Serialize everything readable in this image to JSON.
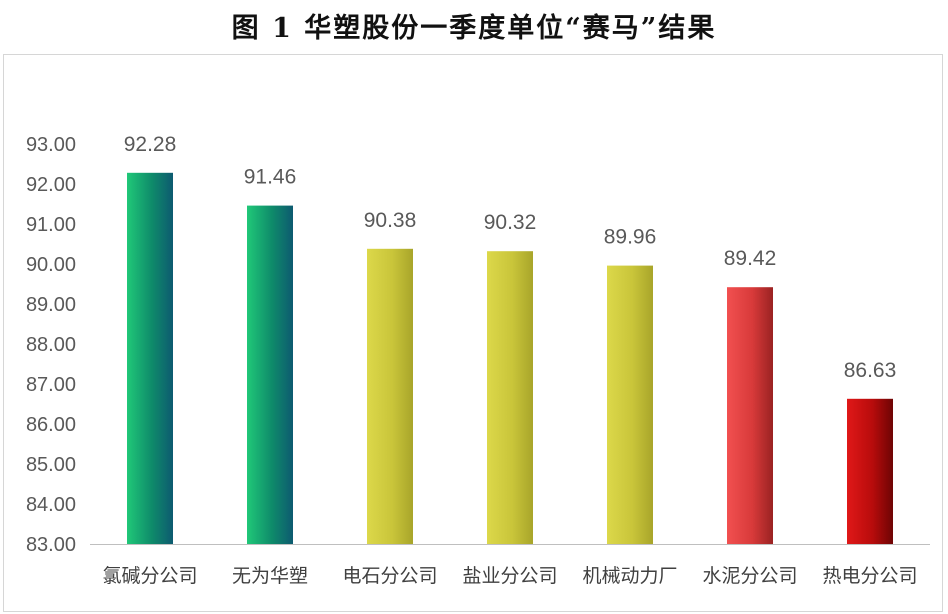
{
  "title": "图 1  华塑股份一季度单位“赛马”结果",
  "chart_data": {
    "type": "bar",
    "title": "图 1  华塑股份一季度单位“赛马”结果",
    "categories": [
      "氯碱分公司",
      "无为华塑",
      "电石分公司",
      "盐业分公司",
      "机械动力厂",
      "水泥分公司",
      "热电分公司"
    ],
    "values": [
      92.28,
      91.46,
      90.38,
      90.32,
      89.96,
      89.42,
      86.63
    ],
    "data_labels": [
      "92.28",
      "91.46",
      "90.38",
      "90.32",
      "89.96",
      "89.42",
      "86.63"
    ],
    "ylim": [
      83,
      93
    ],
    "yticks": [
      "83.00",
      "84.00",
      "85.00",
      "86.00",
      "87.00",
      "88.00",
      "89.00",
      "90.00",
      "91.00",
      "92.00",
      "93.00"
    ],
    "xlabel": "",
    "ylabel": "",
    "grid": false,
    "legend": "none",
    "bar_colors": [
      [
        "#20c878",
        "#0e8a6a",
        "#0d5a70"
      ],
      [
        "#20c878",
        "#0e8a6a",
        "#0d5a70"
      ],
      [
        "#dcd84a",
        "#c9c53a",
        "#a8a52a"
      ],
      [
        "#dcd84a",
        "#c9c53a",
        "#a8a52a"
      ],
      [
        "#dcd84a",
        "#c9c53a",
        "#a8a52a"
      ],
      [
        "#f25050",
        "#d83a3a",
        "#9a2222"
      ],
      [
        "#e01818",
        "#b80c0c",
        "#6e0404"
      ]
    ]
  }
}
